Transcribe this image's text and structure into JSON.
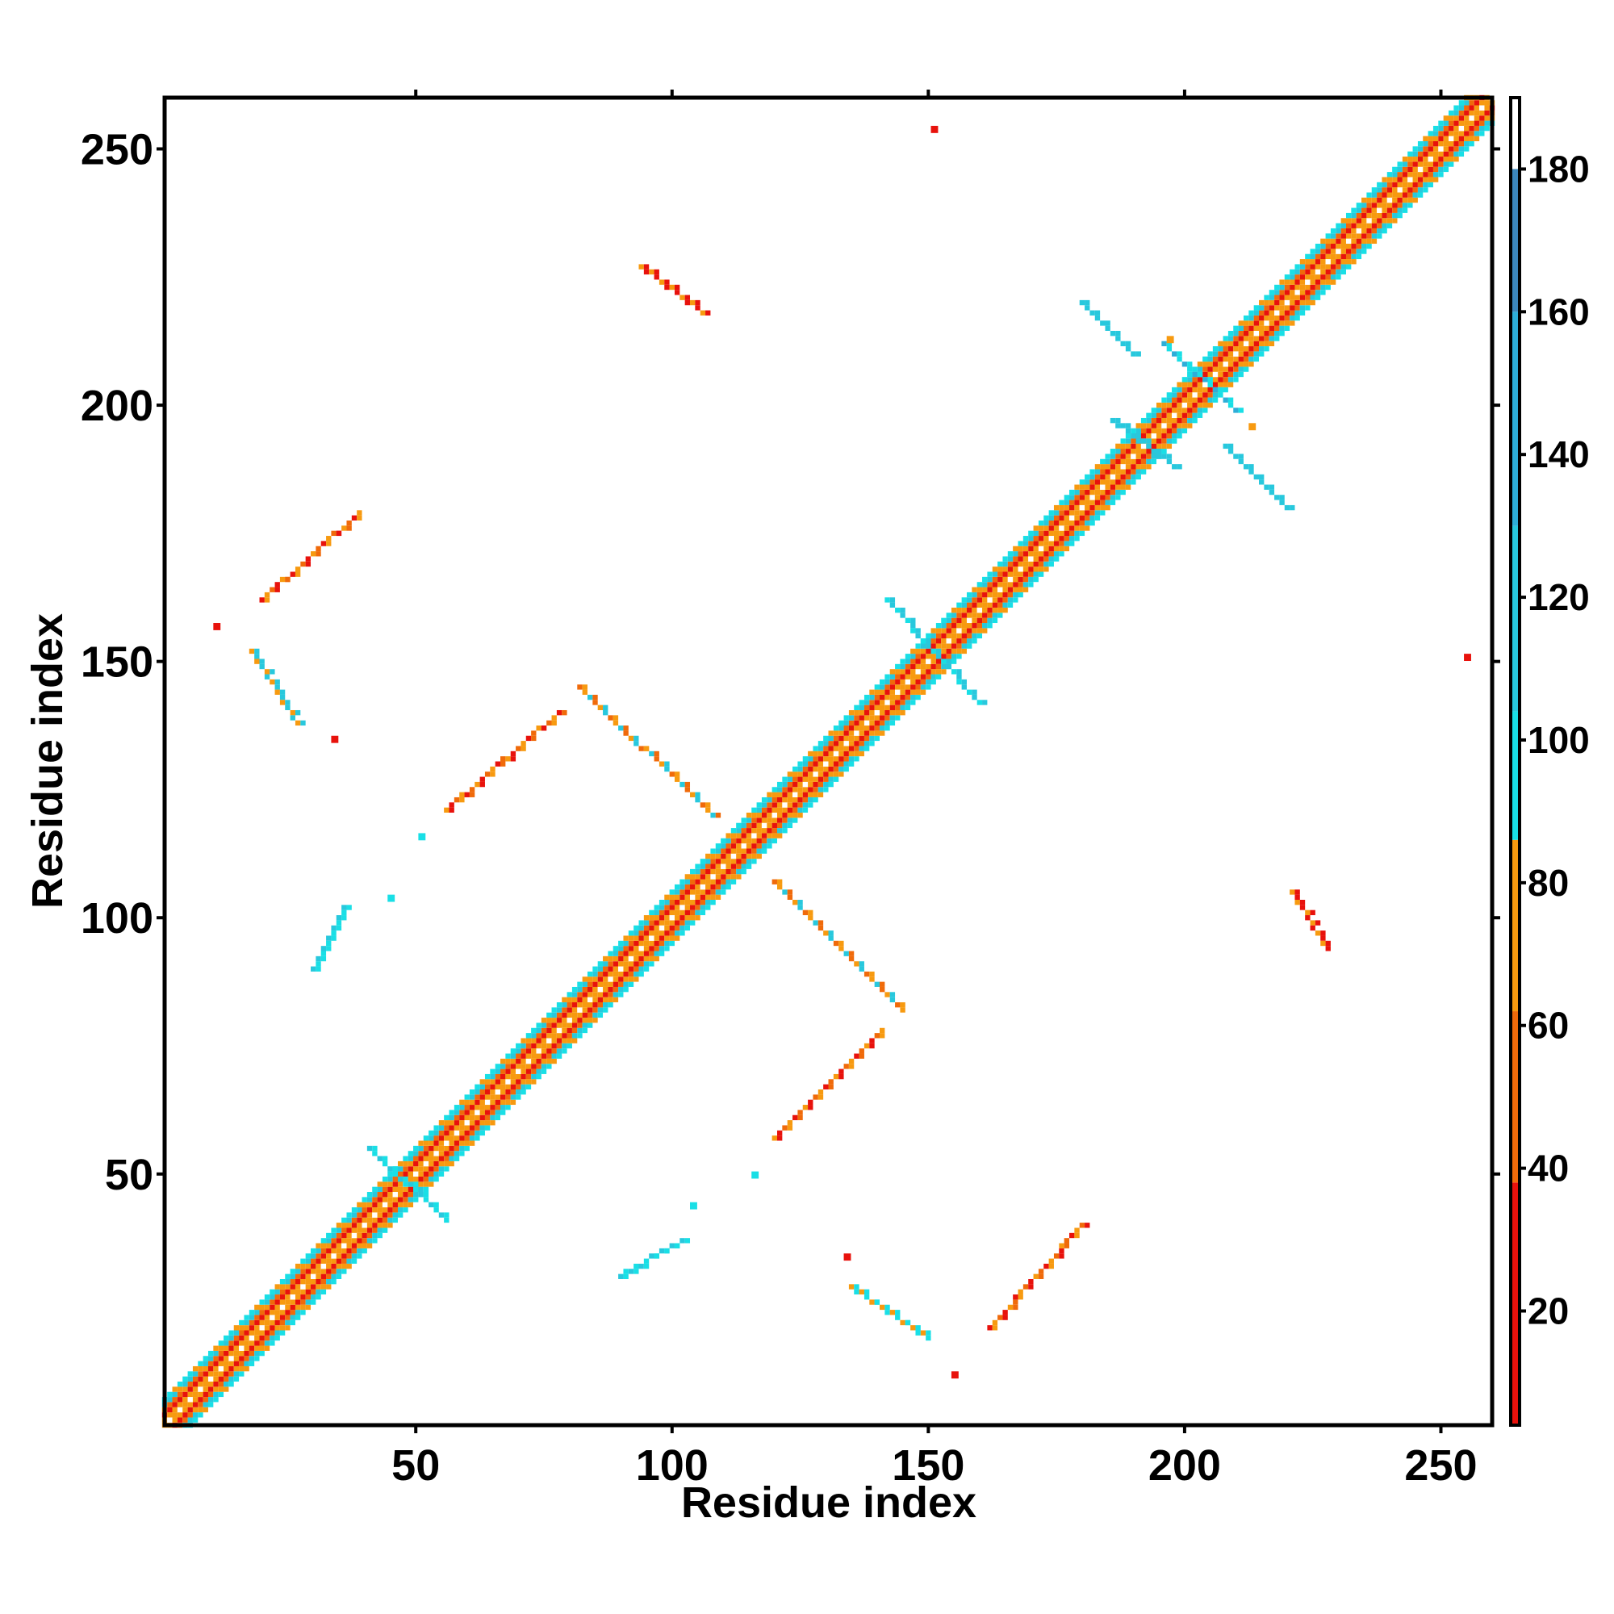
{
  "chart_data": {
    "type": "heatmap",
    "title": "",
    "xlabel": "Residue index",
    "ylabel": "Residue index",
    "xlim": [
      1,
      260
    ],
    "ylim": [
      1,
      260
    ],
    "x_ticks": [
      "50",
      "100",
      "150",
      "200",
      "250"
    ],
    "y_ticks": [
      "50",
      "100",
      "150",
      "200",
      "250"
    ],
    "colorbar": {
      "range": [
        4,
        190
      ],
      "ticks": [
        "20",
        "40",
        "60",
        "80",
        "100",
        "120",
        "140",
        "160",
        "180"
      ],
      "bands": [
        {
          "from": 4,
          "to": 38,
          "color": "#e8120c"
        },
        {
          "from": 38,
          "to": 62,
          "color": "#f06a0a"
        },
        {
          "from": 62,
          "to": 86,
          "color": "#f79a10"
        },
        {
          "from": 86,
          "to": 104,
          "color": "#19dfe6"
        },
        {
          "from": 104,
          "to": 130,
          "color": "#28c8dd"
        },
        {
          "from": 130,
          "to": 160,
          "color": "#2eaed8"
        },
        {
          "from": 160,
          "to": 180,
          "color": "#3c86bb"
        },
        {
          "from": 180,
          "to": 190,
          "color": "#ffffff"
        }
      ]
    },
    "grid": false,
    "legend": "colorbar at right",
    "diagonal_band": {
      "from": 1,
      "to": 260
    },
    "contact_segments": [
      {
        "name": "antiparallel-upper-1",
        "from": [
          20,
          162
        ],
        "to": [
          39,
          179
        ],
        "colors": [
          "#e8120c",
          "#f79a10",
          "#f06a0a"
        ]
      },
      {
        "name": "antiparallel-upper-2",
        "from": [
          56,
          121
        ],
        "to": [
          78,
          140
        ],
        "colors": [
          "#f06a0a",
          "#f79a10",
          "#e8120c"
        ]
      },
      {
        "name": "parallel-upper-1",
        "from": [
          82,
          145
        ],
        "to": [
          108,
          120
        ],
        "colors": [
          "#f79a10",
          "#28c8dd",
          "#f06a0a"
        ]
      },
      {
        "name": "upper-2",
        "from": [
          18,
          152
        ],
        "to": [
          27,
          138
        ],
        "colors": [
          "#28c8dd",
          "#f79a10"
        ]
      },
      {
        "name": "upper-3",
        "from": [
          94,
          227
        ],
        "to": [
          106,
          218
        ],
        "colors": [
          "#f79a10",
          "#e8120c"
        ]
      },
      {
        "name": "upper-4",
        "from": [
          30,
          90
        ],
        "to": [
          36,
          102
        ],
        "colors": [
          "#19dfe6",
          "#28c8dd"
        ]
      },
      {
        "name": "lower-1",
        "from": [
          162,
          20
        ],
        "to": [
          180,
          40
        ],
        "colors": [
          "#e8120c",
          "#f79a10",
          "#f06a0a"
        ]
      },
      {
        "name": "lower-2",
        "from": [
          120,
          57
        ],
        "to": [
          141,
          78
        ],
        "colors": [
          "#f06a0a",
          "#f79a10",
          "#e8120c"
        ]
      },
      {
        "name": "lower-3",
        "from": [
          120,
          107
        ],
        "to": [
          145,
          82
        ],
        "colors": [
          "#f79a10",
          "#28c8dd",
          "#f06a0a"
        ]
      },
      {
        "name": "lower-4",
        "from": [
          135,
          28
        ],
        "to": [
          150,
          18
        ],
        "colors": [
          "#19dfe6",
          "#f79a10"
        ]
      },
      {
        "name": "lower-5",
        "from": [
          221,
          105
        ],
        "to": [
          228,
          94
        ],
        "colors": [
          "#f79a10",
          "#e8120c"
        ]
      },
      {
        "name": "lower-6",
        "from": [
          90,
          30
        ],
        "to": [
          102,
          37
        ],
        "colors": [
          "#19dfe6",
          "#28c8dd"
        ]
      },
      {
        "name": "blob-a",
        "from": [
          180,
          220
        ],
        "to": [
          190,
          210
        ],
        "colors": [
          "#28c8dd"
        ]
      },
      {
        "name": "blob-b",
        "from": [
          186,
          197
        ],
        "to": [
          198,
          188
        ],
        "colors": [
          "#28c8dd"
        ]
      },
      {
        "name": "blob-c",
        "from": [
          208,
          192
        ],
        "to": [
          220,
          180
        ],
        "colors": [
          "#28c8dd"
        ]
      },
      {
        "name": "blob-d",
        "from": [
          196,
          212
        ],
        "to": [
          210,
          199
        ],
        "colors": [
          "#19dfe6",
          "#2eaed8"
        ]
      },
      {
        "name": "blob-e",
        "from": [
          142,
          162
        ],
        "to": [
          160,
          142
        ],
        "colors": [
          "#19dfe6",
          "#28c8dd"
        ]
      },
      {
        "name": "blob-f",
        "from": [
          41,
          55
        ],
        "to": [
          56,
          41
        ],
        "colors": [
          "#19dfe6",
          "#28c8dd"
        ]
      }
    ],
    "isolated_points": [
      {
        "x": 151,
        "y": 254,
        "color": "#e8120c"
      },
      {
        "x": 255,
        "y": 151,
        "color": "#e8120c"
      },
      {
        "x": 197,
        "y": 213,
        "color": "#f79a10"
      },
      {
        "x": 213,
        "y": 196,
        "color": "#f79a10"
      },
      {
        "x": 11,
        "y": 157,
        "color": "#e8120c"
      },
      {
        "x": 34,
        "y": 135,
        "color": "#e8120c"
      },
      {
        "x": 51,
        "y": 116,
        "color": "#19dfe6"
      },
      {
        "x": 45,
        "y": 104,
        "color": "#19dfe6"
      },
      {
        "x": 104,
        "y": 44,
        "color": "#19dfe6"
      },
      {
        "x": 116,
        "y": 50,
        "color": "#19dfe6"
      },
      {
        "x": 134,
        "y": 34,
        "color": "#e8120c"
      },
      {
        "x": 155,
        "y": 11,
        "color": "#e8120c"
      }
    ]
  }
}
